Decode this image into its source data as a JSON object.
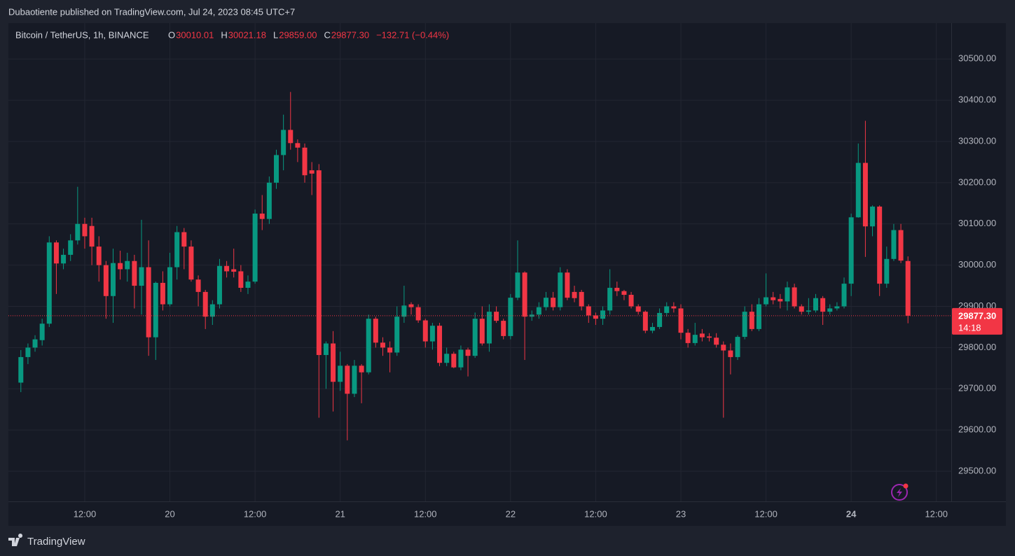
{
  "header": "Dubaotiente published on TradingView.com, Jul 24, 2023 08:45 UTC+7",
  "footer": "TradingView",
  "chart_data": {
    "type": "candlestick",
    "symbol": "Bitcoin / TetherUS, 1h, BINANCE",
    "legend_keys": [
      "O",
      "H",
      "L",
      "C"
    ],
    "legend_values": [
      "30010.01",
      "30021.18",
      "29859.00",
      "29877.30"
    ],
    "change": "−132.71 (−0.44%)",
    "up_color": "#089981",
    "down_color": "#f23645",
    "grid": true,
    "open": [
      29715,
      29777,
      29800,
      29818,
      29858,
      30055,
      30004,
      30025,
      30060,
      30100,
      30095,
      30045,
      30000,
      29925,
      30005,
      29990,
      30010,
      29950,
      29995,
      29825,
      29957,
      29905,
      29995,
      30080,
      30045,
      29965,
      29935,
      29875,
      29905,
      29998,
      29990,
      29985,
      29945,
      29960,
      30125,
      30112,
      30200,
      30267,
      30328,
      30296,
      30285,
      30230,
      30230,
      29782,
      29810,
      29717,
      29756,
      29688,
      29756,
      29740,
      29870,
      29812,
      29800,
      29788,
      29875,
      29905,
      29898,
      29866,
      29815,
      29853,
      29763,
      29785,
      29752,
      29795,
      29780,
      29870,
      29810,
      29887,
      29865,
      29828,
      29921,
      29982,
      29875,
      29880,
      29898,
      29921,
      29898,
      29982,
      29935,
      29935,
      29900,
      29878,
      29870,
      29890,
      29945,
      29937,
      29928,
      29900,
      29887,
      29841,
      29850,
      29884,
      29900,
      29895,
      29836,
      29811,
      29834,
      29827,
      29824,
      29807,
      29793,
      29777,
      29826,
      29887,
      29845,
      29905,
      29922,
      29918,
      29912,
      29946,
      29900,
      29887,
      29890,
      29920,
      29887,
      29895,
      29900,
      29955,
      30116,
      30248,
      30094,
      30142,
      29955,
      30015,
      30085,
      30010.01
    ],
    "high": [
      29794,
      29810,
      29830,
      29870,
      30070,
      30060,
      30040,
      30075,
      30190,
      30115,
      30115,
      30070,
      30010,
      30040,
      30035,
      30030,
      30025,
      30110,
      30060,
      29960,
      29985,
      30030,
      30095,
      30090,
      30060,
      29975,
      29940,
      29915,
      30015,
      30010,
      30040,
      30000,
      29975,
      30135,
      30170,
      30215,
      30280,
      30365,
      30420,
      30305,
      30295,
      30250,
      30245,
      29815,
      29840,
      29790,
      29760,
      29770,
      29760,
      29880,
      29875,
      29825,
      29815,
      29900,
      29950,
      29910,
      29905,
      29870,
      29860,
      29860,
      29800,
      29790,
      29805,
      29800,
      29885,
      29900,
      29905,
      29900,
      29870,
      29930,
      30060,
      29985,
      29890,
      29910,
      29935,
      29935,
      29995,
      29990,
      29950,
      29940,
      29905,
      29885,
      29900,
      29990,
      29960,
      29940,
      29935,
      29905,
      29890,
      29860,
      29895,
      29910,
      29910,
      29905,
      29845,
      29860,
      29845,
      29835,
      29835,
      29815,
      29810,
      29830,
      29900,
      29905,
      29920,
      29980,
      29935,
      29930,
      29960,
      29955,
      29905,
      29920,
      29930,
      29925,
      29905,
      29910,
      29970,
      30125,
      30295,
      30350,
      30145,
      30145,
      30045,
      30100,
      30100,
      30021.18
    ],
    "low": [
      29692,
      29760,
      29790,
      29805,
      29850,
      29930,
      29990,
      30010,
      30050,
      30040,
      30000,
      29960,
      29870,
      29860,
      29965,
      29960,
      29895,
      29880,
      29780,
      29770,
      29890,
      29900,
      29965,
      29990,
      29960,
      29900,
      29845,
      29855,
      29895,
      29970,
      29970,
      29935,
      29930,
      29955,
      30085,
      30100,
      30185,
      30230,
      30280,
      30250,
      30200,
      30170,
      29630,
      29700,
      29645,
      29695,
      29575,
      29680,
      29665,
      29735,
      29800,
      29780,
      29740,
      29780,
      29860,
      29880,
      29860,
      29800,
      29795,
      29755,
      29755,
      29750,
      29745,
      29730,
      29775,
      29805,
      29790,
      29860,
      29820,
      29820,
      29915,
      29770,
      29865,
      29870,
      29890,
      29890,
      29890,
      29915,
      29910,
      29890,
      29860,
      29855,
      29855,
      29880,
      29925,
      29915,
      29895,
      29880,
      29835,
      29835,
      29845,
      29875,
      29885,
      29820,
      29800,
      29805,
      29815,
      29815,
      29800,
      29630,
      29735,
      29770,
      29820,
      29840,
      29840,
      29900,
      29905,
      29895,
      29890,
      29895,
      29880,
      29880,
      29885,
      29855,
      29880,
      29890,
      29895,
      29925,
      30115,
      30020,
      30070,
      29925,
      29945,
      30010,
      30005,
      29859.0
    ],
    "close": [
      29777,
      29800,
      29820,
      29858,
      30055,
      30004,
      30025,
      30060,
      30100,
      30070,
      30045,
      30000,
      29925,
      30005,
      29990,
      30010,
      29950,
      29995,
      29825,
      29957,
      29905,
      29995,
      30080,
      30045,
      29965,
      29935,
      29875,
      29905,
      29998,
      29985,
      29984,
      29945,
      29960,
      30125,
      30112,
      30200,
      30267,
      30328,
      30296,
      30285,
      30218,
      30222,
      29782,
      29810,
      29717,
      29756,
      29688,
      29756,
      29740,
      29870,
      29812,
      29800,
      29788,
      29875,
      29902,
      29898,
      29866,
      29815,
      29853,
      29763,
      29785,
      29752,
      29795,
      29780,
      29870,
      29810,
      29887,
      29865,
      29828,
      29921,
      29982,
      29875,
      29880,
      29898,
      29921,
      29898,
      29982,
      29921,
      29920,
      29900,
      29878,
      29870,
      29890,
      29945,
      29937,
      29928,
      29900,
      29887,
      29841,
      29850,
      29884,
      29900,
      29895,
      29836,
      29811,
      29831,
      29825,
      29824,
      29807,
      29793,
      29777,
      29826,
      29887,
      29845,
      29905,
      29922,
      29915,
      29912,
      29946,
      29900,
      29887,
      29890,
      29920,
      29887,
      29895,
      29900,
      29955,
      30116,
      30248,
      30094,
      30142,
      29955,
      30015,
      30085,
      30011,
      29877.3
    ],
    "ylim": [
      29427,
      30587
    ],
    "yticks": [
      {
        "value": 29500,
        "label": "29500.00"
      },
      {
        "value": 29600,
        "label": "29600.00"
      },
      {
        "value": 29700,
        "label": "29700.00"
      },
      {
        "value": 29800,
        "label": "29800.00"
      },
      {
        "value": 29900,
        "label": "29900.00"
      },
      {
        "value": 30000,
        "label": "30000.00"
      },
      {
        "value": 30100,
        "label": "30100.00"
      },
      {
        "value": 30200,
        "label": "30200.00"
      },
      {
        "value": 30300,
        "label": "30300.00"
      },
      {
        "value": 30400,
        "label": "30400.00"
      },
      {
        "value": 30500,
        "label": "30500.00"
      }
    ],
    "xlim": [
      -1.755,
      131.1
    ],
    "xticks": [
      {
        "value": 9,
        "label": "12:00"
      },
      {
        "value": 21,
        "label": "20"
      },
      {
        "value": 33,
        "label": "12:00"
      },
      {
        "value": 45,
        "label": "21"
      },
      {
        "value": 57,
        "label": "12:00"
      },
      {
        "value": 69,
        "label": "22"
      },
      {
        "value": 81,
        "label": "12:00"
      },
      {
        "value": 93,
        "label": "23"
      },
      {
        "value": 105,
        "label": "12:00"
      },
      {
        "value": 117,
        "label": "24"
      },
      {
        "value": 129,
        "label": "12:00"
      }
    ],
    "price_tag": {
      "value": 29877.3,
      "label": "29877.30",
      "countdown": "14:18"
    }
  }
}
